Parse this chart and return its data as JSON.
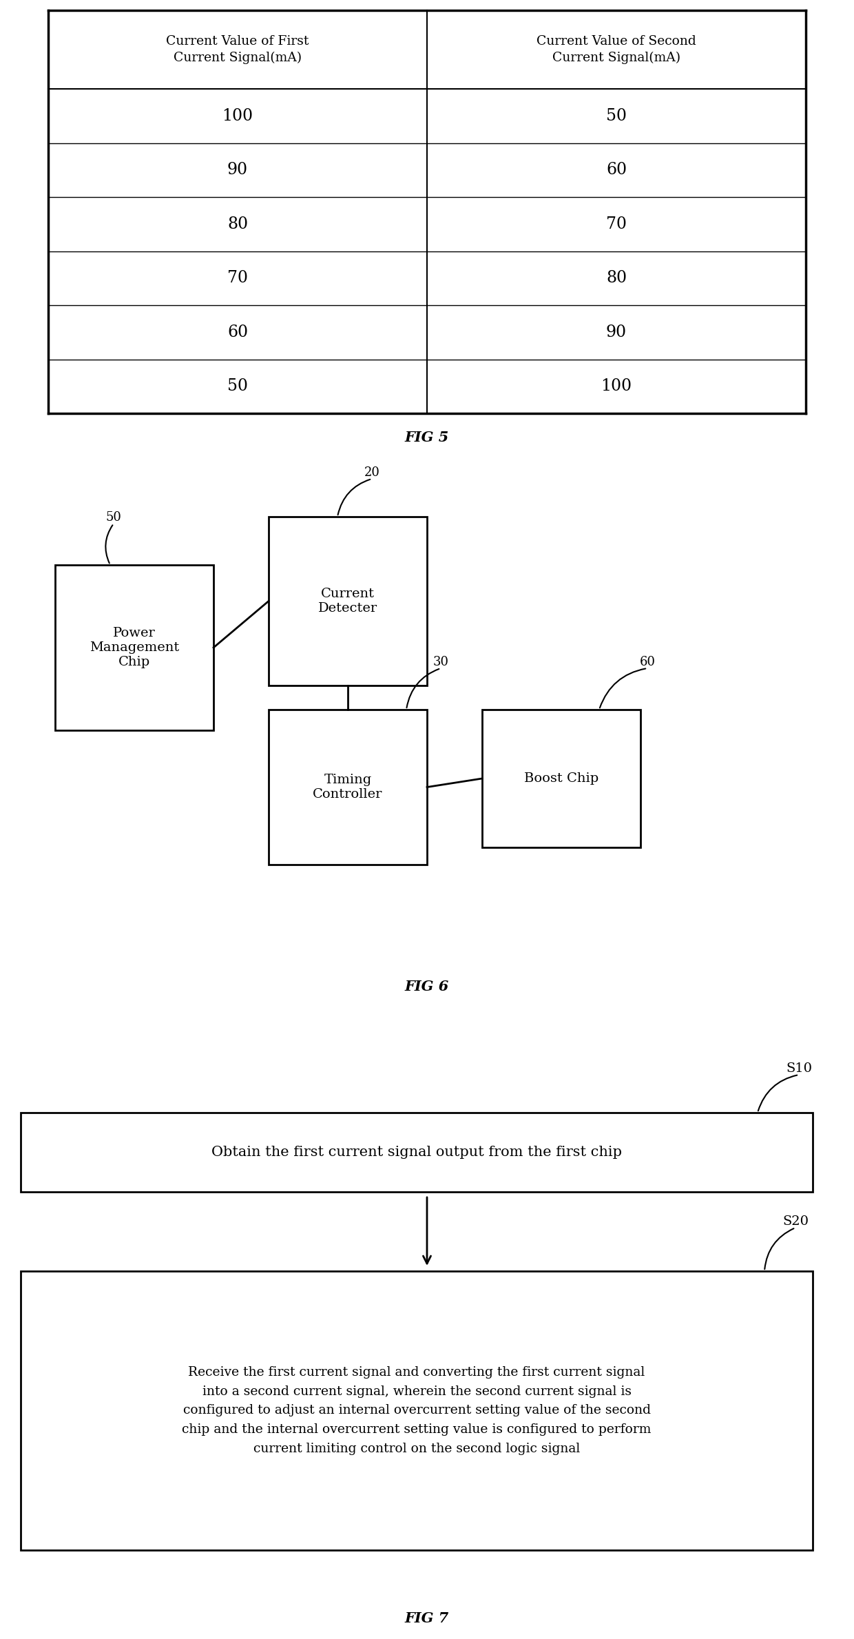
{
  "fig5": {
    "title": "FIG 5",
    "col1_header": "Current Value of First\nCurrent Signal(mA)",
    "col2_header": "Current Value of Second\nCurrent Signal(mA)",
    "col1_data": [
      "100",
      "90",
      "80",
      "70",
      "60",
      "50"
    ],
    "col2_data": [
      "50",
      "60",
      "70",
      "80",
      "90",
      "100"
    ]
  },
  "fig6": {
    "title": "FIG 6"
  },
  "fig7": {
    "title": "FIG 7",
    "box1_text": "Obtain the first current signal output from the first chip",
    "box1_tag": "S10",
    "box2_text": "Receive the first current signal and converting the first current signal\ninto a second current signal, wherein the second current signal is\nconfigured to adjust an internal overcurrent setting value of the second\nchip and the internal overcurrent setting value is configured to perform\ncurrent limiting control on the second logic signal",
    "box2_tag": "S20"
  },
  "bg_color": "#ffffff",
  "text_color": "#000000"
}
